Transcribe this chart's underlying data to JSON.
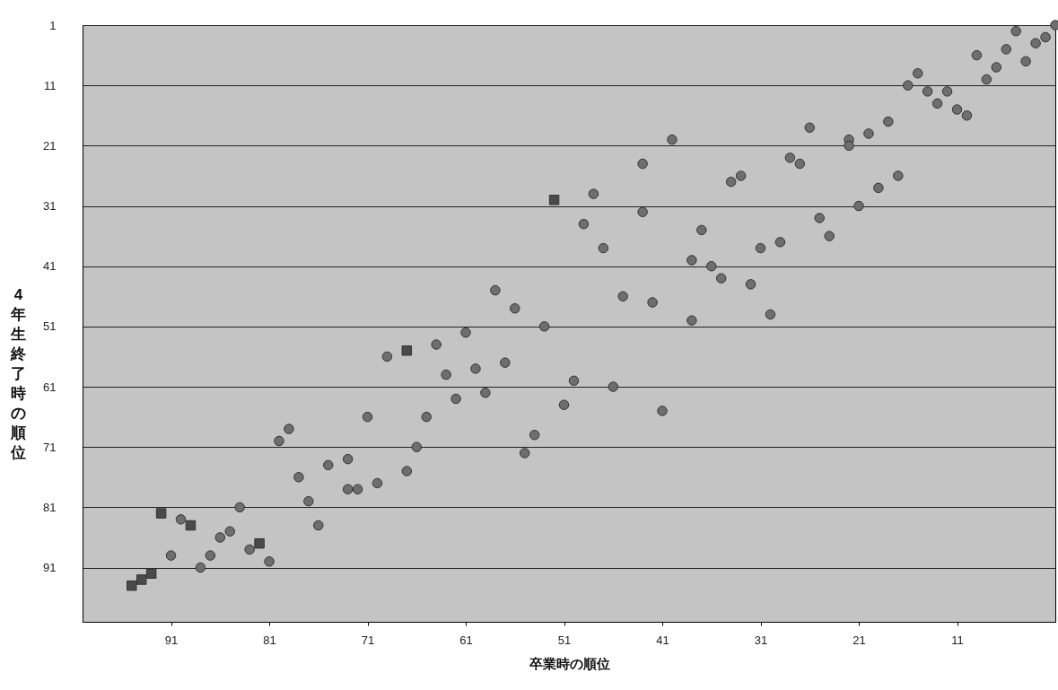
{
  "chart_data": {
    "type": "scatter",
    "xlabel": "卒業時の順位",
    "ylabel": "4年生終了時の順位",
    "xlim": [
      100,
      1
    ],
    "ylim": [
      100,
      1
    ],
    "xticks": [
      91,
      81,
      71,
      61,
      51,
      41,
      31,
      21,
      11
    ],
    "yticks": [
      1,
      11,
      21,
      31,
      41,
      51,
      61,
      71,
      81,
      91
    ],
    "grid": "y",
    "series": [
      {
        "color": "#6e6e6e",
        "marker": "circle",
        "x": [
          1,
          5,
          2,
          3,
          6,
          4,
          9,
          7,
          8,
          15,
          16,
          14,
          12,
          13,
          11,
          10,
          18,
          26,
          20,
          22,
          22,
          28,
          27,
          17,
          19,
          21,
          25,
          24,
          29,
          31,
          40,
          43,
          33,
          34,
          48,
          43,
          49,
          37,
          47,
          38,
          36,
          35,
          32,
          45,
          42,
          38,
          30,
          53,
          58,
          56,
          61,
          64,
          69,
          57,
          60,
          63,
          50,
          46,
          59,
          62,
          51,
          41,
          71,
          65,
          54,
          66,
          55,
          73,
          79,
          80,
          75,
          67,
          78,
          73,
          72,
          70,
          77,
          84,
          76,
          90,
          85,
          86,
          83,
          91,
          87,
          81,
          88
        ],
        "values": [
          1,
          2,
          3,
          4,
          5,
          7,
          6,
          8,
          10,
          9,
          11,
          12,
          12,
          14,
          15,
          16,
          17,
          18,
          19,
          20,
          21,
          23,
          24,
          26,
          28,
          31,
          33,
          36,
          37,
          38,
          20,
          24,
          26,
          27,
          29,
          32,
          34,
          35,
          38,
          40,
          41,
          43,
          44,
          46,
          47,
          50,
          49,
          51,
          45,
          48,
          52,
          54,
          56,
          57,
          58,
          59,
          60,
          61,
          62,
          63,
          64,
          65,
          66,
          66,
          69,
          71,
          72,
          73,
          68,
          70,
          74,
          75,
          76,
          78,
          78,
          77,
          80,
          81,
          84,
          83,
          85,
          86,
          88,
          89,
          89,
          90,
          91
        ]
      },
      {
        "color": "#4a4a4a",
        "marker": "square",
        "x": [
          52,
          67,
          92,
          89,
          82,
          93,
          94,
          95
        ],
        "values": [
          30,
          55,
          82,
          84,
          87,
          92,
          93,
          94
        ]
      }
    ]
  }
}
